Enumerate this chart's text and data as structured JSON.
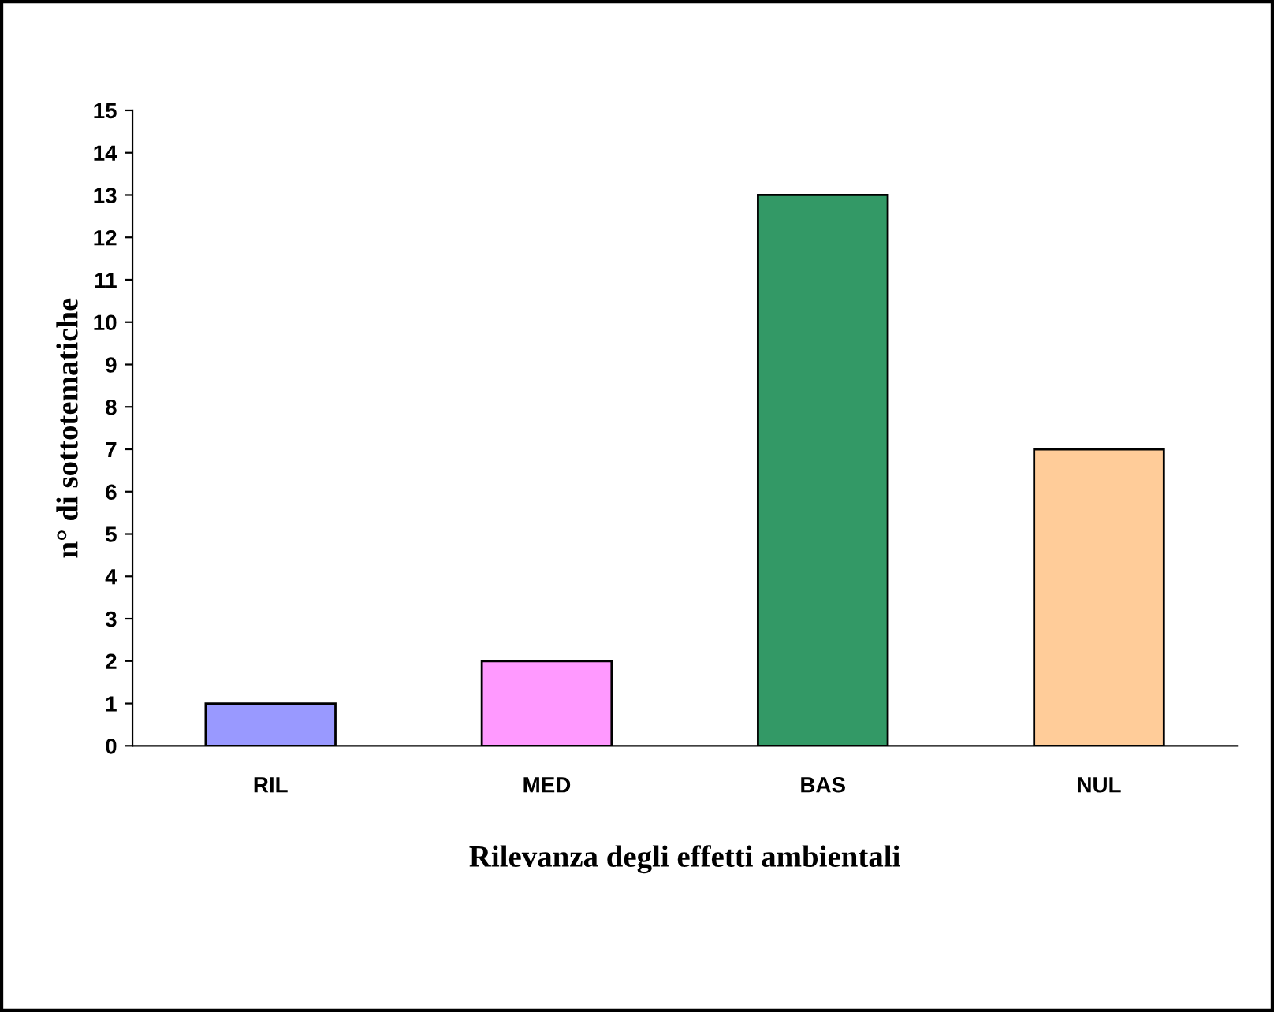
{
  "chart_data": {
    "type": "bar",
    "xlabel": "Rilevanza degli effetti ambientali",
    "ylabel": "n° di sottotematiche",
    "categories": [
      "RIL",
      "MED",
      "BAS",
      "NUL"
    ],
    "values": [
      1,
      2,
      13,
      7
    ],
    "colors": [
      "#9999ff",
      "#ff99ff",
      "#339966",
      "#ffcc99"
    ],
    "ylim": [
      0,
      15
    ],
    "yticks": [
      0,
      1,
      2,
      3,
      4,
      5,
      6,
      7,
      8,
      9,
      10,
      11,
      12,
      13,
      14,
      15
    ],
    "grid": false,
    "legend": false
  }
}
